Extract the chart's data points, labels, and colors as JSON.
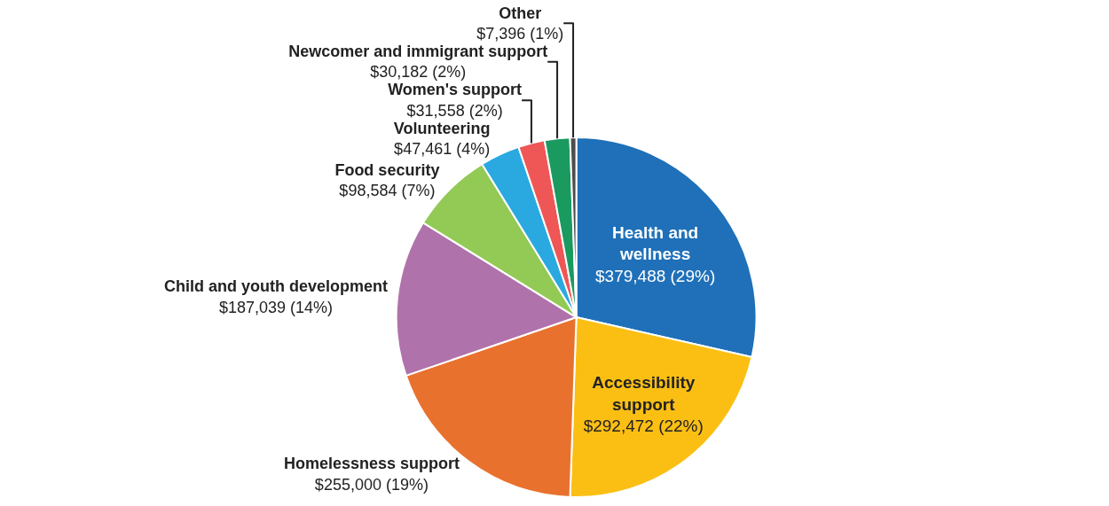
{
  "chart_data": {
    "type": "pie",
    "categories": [
      "Health and wellness",
      "Accessibility support",
      "Homelessness support",
      "Child and youth development",
      "Food security",
      "Volunteering",
      "Women's support",
      "Newcomer and immigrant support",
      "Other"
    ],
    "values": [
      379488,
      292472,
      255000,
      187039,
      98584,
      47461,
      31558,
      30182,
      7396
    ],
    "value_labels": [
      "$379,488 (29%)",
      "$292,472 (22%)",
      "$255,000 (19%)",
      "$187,039 (14%)",
      "$98,584 (7%)",
      "$47,461 (4%)",
      "$31,558 (2%)",
      "$30,182 (2%)",
      "$7,396 (1%)"
    ],
    "colors": [
      "#1f70b8",
      "#fbbf14",
      "#e9712e",
      "#b072aa",
      "#93c955",
      "#2aa9e1",
      "#ef5656",
      "#1a9a5f",
      "#4d4d4d"
    ],
    "legend": false
  }
}
